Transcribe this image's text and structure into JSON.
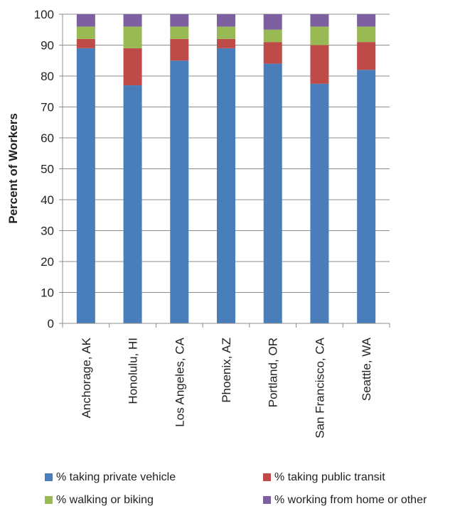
{
  "chart_data": {
    "type": "bar",
    "stacked": true,
    "ylabel": "Percent of Workers",
    "xlabel": "",
    "ylim": [
      0,
      100
    ],
    "yticks": [
      0,
      10,
      20,
      30,
      40,
      50,
      60,
      70,
      80,
      90,
      100
    ],
    "grid": "horizontal",
    "legend_position": "bottom",
    "categories": [
      "Anchorage, AK",
      "Honolulu, HI",
      "Los Angeles, CA",
      "Phoenix, AZ",
      "Portland, OR",
      "San Francisco, CA",
      "Seattle, WA"
    ],
    "series": [
      {
        "name": "% taking private vehicle",
        "color": "#4a7ebb",
        "values": [
          89,
          77,
          85,
          89,
          84,
          77.5,
          82
        ]
      },
      {
        "name": "% taking public transit",
        "color": "#be4b48",
        "values": [
          3,
          12,
          7,
          3,
          7,
          12.5,
          9
        ]
      },
      {
        "name": "% walking or biking",
        "color": "#98b954",
        "values": [
          4,
          7,
          4,
          4,
          4,
          6,
          5
        ]
      },
      {
        "name": "% working from home or other",
        "color": "#7d60a0",
        "values": [
          4,
          4,
          4,
          4,
          5,
          4,
          4
        ]
      }
    ]
  }
}
